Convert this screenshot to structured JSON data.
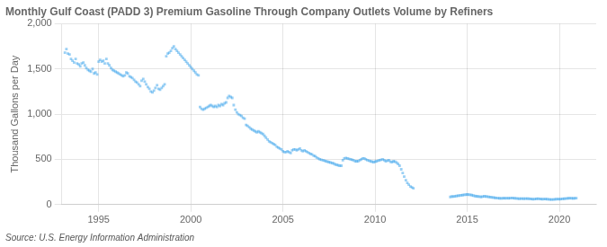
{
  "chart_data": {
    "type": "scatter",
    "title": "Monthly Gulf Coast (PADD 3) Premium Gasoline Through Company Outlets Volume by Refiners",
    "ylabel": "Thousand Gallons per Day",
    "annotation": "Source: U.S. Energy Information Administration",
    "marker": "square",
    "grid": true,
    "xlim": [
      1993,
      2022
    ],
    "xticks": [
      1995,
      2000,
      2005,
      2010,
      2015,
      2020
    ],
    "ylim": [
      0,
      2000
    ],
    "yticks": [
      0,
      500,
      {
        "value": 1000,
        "label": "1,000"
      },
      {
        "value": 1500,
        "label": "1,500"
      },
      {
        "value": 2000,
        "label": "2,000"
      }
    ],
    "x": [
      1993.17,
      1993.25,
      1993.33,
      1993.42,
      1993.5,
      1993.58,
      1993.67,
      1993.75,
      1993.83,
      1993.92,
      1994.0,
      1994.08,
      1994.17,
      1994.25,
      1994.33,
      1994.42,
      1994.5,
      1994.58,
      1994.67,
      1994.75,
      1994.83,
      1994.92,
      1995.0,
      1995.08,
      1995.17,
      1995.25,
      1995.33,
      1995.42,
      1995.5,
      1995.58,
      1995.67,
      1995.75,
      1995.83,
      1995.92,
      1996.0,
      1996.08,
      1996.17,
      1996.25,
      1996.33,
      1996.42,
      1996.5,
      1996.58,
      1996.67,
      1996.75,
      1996.83,
      1996.92,
      1997.0,
      1997.08,
      1997.17,
      1997.25,
      1997.33,
      1997.42,
      1997.5,
      1997.58,
      1997.67,
      1997.75,
      1997.83,
      1997.92,
      1998.0,
      1998.08,
      1998.17,
      1998.25,
      1998.33,
      1998.42,
      1998.5,
      1998.58,
      1998.67,
      1998.75,
      1998.83,
      1998.92,
      1999.0,
      1999.08,
      1999.17,
      1999.25,
      1999.33,
      1999.42,
      1999.5,
      1999.58,
      1999.67,
      1999.75,
      1999.83,
      1999.92,
      2000.0,
      2000.08,
      2000.17,
      2000.25,
      2000.33,
      2000.42,
      2000.5,
      2000.58,
      2000.67,
      2000.75,
      2000.83,
      2000.92,
      2001.0,
      2001.08,
      2001.17,
      2001.25,
      2001.33,
      2001.42,
      2001.5,
      2001.58,
      2001.67,
      2001.75,
      2001.83,
      2001.92,
      2002.0,
      2002.08,
      2002.17,
      2002.25,
      2002.33,
      2002.42,
      2002.5,
      2002.58,
      2002.67,
      2002.75,
      2002.83,
      2002.92,
      2003.0,
      2003.08,
      2003.17,
      2003.25,
      2003.33,
      2003.42,
      2003.5,
      2003.58,
      2003.67,
      2003.75,
      2003.83,
      2003.92,
      2004.0,
      2004.08,
      2004.17,
      2004.25,
      2004.33,
      2004.42,
      2004.5,
      2004.58,
      2004.67,
      2004.75,
      2004.83,
      2004.92,
      2005.0,
      2005.08,
      2005.17,
      2005.25,
      2005.33,
      2005.42,
      2005.5,
      2005.58,
      2005.67,
      2005.75,
      2005.83,
      2005.92,
      2006.0,
      2006.08,
      2006.17,
      2006.25,
      2006.33,
      2006.42,
      2006.5,
      2006.58,
      2006.67,
      2006.75,
      2006.83,
      2006.92,
      2007.0,
      2007.08,
      2007.17,
      2007.25,
      2007.33,
      2007.42,
      2007.5,
      2007.58,
      2007.67,
      2007.75,
      2007.83,
      2007.92,
      2008.0,
      2008.08,
      2008.17,
      2008.25,
      2008.33,
      2008.42,
      2008.5,
      2008.58,
      2008.67,
      2008.75,
      2008.83,
      2008.92,
      2009.0,
      2009.08,
      2009.17,
      2009.25,
      2009.33,
      2009.42,
      2009.5,
      2009.58,
      2009.67,
      2009.75,
      2009.83,
      2009.92,
      2010.0,
      2010.08,
      2010.17,
      2010.25,
      2010.33,
      2010.42,
      2010.5,
      2010.58,
      2010.67,
      2010.75,
      2010.83,
      2010.92,
      2011.0,
      2011.08,
      2011.17,
      2011.25,
      2011.33,
      2011.42,
      2011.5,
      2011.58,
      2011.67,
      2011.75,
      2011.83,
      2011.92,
      2012.0,
      2012.08,
      2014.08,
      2014.17,
      2014.25,
      2014.33,
      2014.42,
      2014.5,
      2014.58,
      2014.67,
      2014.75,
      2014.83,
      2014.92,
      2015.0,
      2015.08,
      2015.17,
      2015.25,
      2015.33,
      2015.42,
      2015.5,
      2015.58,
      2015.67,
      2015.75,
      2015.83,
      2015.92,
      2016.0,
      2016.08,
      2016.17,
      2016.25,
      2016.33,
      2016.42,
      2016.5,
      2016.58,
      2016.67,
      2016.75,
      2016.83,
      2016.92,
      2017.0,
      2017.08,
      2017.17,
      2017.25,
      2017.33,
      2017.42,
      2017.5,
      2017.58,
      2017.67,
      2017.75,
      2017.83,
      2017.92,
      2018.0,
      2018.08,
      2018.17,
      2018.25,
      2018.33,
      2018.42,
      2018.5,
      2018.58,
      2018.67,
      2018.75,
      2018.83,
      2018.92,
      2019.0,
      2019.08,
      2019.17,
      2019.25,
      2019.33,
      2019.42,
      2019.5,
      2019.58,
      2019.67,
      2019.75,
      2019.83,
      2019.92,
      2020.0,
      2020.08,
      2020.17,
      2020.25,
      2020.33,
      2020.42,
      2020.5,
      2020.58,
      2020.67,
      2020.75,
      2020.83,
      2020.92
    ],
    "values": [
      1680,
      1720,
      1670,
      1660,
      1610,
      1590,
      1570,
      1610,
      1560,
      1550,
      1530,
      1560,
      1570,
      1540,
      1510,
      1490,
      1480,
      1470,
      1500,
      1450,
      1460,
      1440,
      1580,
      1600,
      1580,
      1590,
      1560,
      1610,
      1560,
      1540,
      1510,
      1490,
      1480,
      1470,
      1460,
      1450,
      1440,
      1430,
      1420,
      1430,
      1460,
      1450,
      1420,
      1410,
      1400,
      1380,
      1360,
      1350,
      1330,
      1310,
      1370,
      1390,
      1360,
      1330,
      1300,
      1280,
      1250,
      1240,
      1260,
      1290,
      1320,
      1280,
      1270,
      1290,
      1310,
      1330,
      1640,
      1670,
      1680,
      1700,
      1730,
      1750,
      1720,
      1700,
      1680,
      1660,
      1640,
      1620,
      1600,
      1580,
      1560,
      1540,
      1520,
      1500,
      1480,
      1460,
      1440,
      1430,
      1080,
      1060,
      1050,
      1060,
      1070,
      1080,
      1090,
      1100,
      1090,
      1080,
      1090,
      1080,
      1100,
      1090,
      1110,
      1100,
      1120,
      1130,
      1180,
      1200,
      1190,
      1180,
      1100,
      1050,
      1020,
      1000,
      990,
      980,
      960,
      950,
      880,
      870,
      855,
      840,
      830,
      820,
      810,
      800,
      810,
      800,
      790,
      780,
      760,
      740,
      720,
      700,
      690,
      680,
      670,
      660,
      640,
      630,
      620,
      610,
      590,
      580,
      580,
      590,
      580,
      570,
      600,
      610,
      610,
      600,
      610,
      620,
      600,
      590,
      600,
      590,
      580,
      570,
      560,
      555,
      540,
      535,
      520,
      510,
      500,
      495,
      490,
      485,
      480,
      475,
      470,
      465,
      460,
      455,
      445,
      440,
      435,
      430,
      430,
      490,
      510,
      515,
      510,
      505,
      500,
      495,
      490,
      480,
      480,
      480,
      490,
      500,
      510,
      510,
      500,
      490,
      485,
      480,
      475,
      470,
      475,
      480,
      485,
      490,
      495,
      500,
      490,
      480,
      485,
      490,
      475,
      470,
      480,
      475,
      465,
      450,
      430,
      390,
      350,
      310,
      270,
      240,
      220,
      200,
      190,
      180,
      85,
      90,
      88,
      92,
      95,
      98,
      100,
      103,
      105,
      108,
      110,
      112,
      110,
      108,
      105,
      100,
      95,
      92,
      90,
      88,
      85,
      88,
      92,
      90,
      88,
      85,
      83,
      80,
      78,
      75,
      73,
      72,
      70,
      68,
      70,
      72,
      70,
      72,
      70,
      72,
      74,
      72,
      70,
      68,
      67,
      65,
      66,
      67,
      65,
      66,
      67,
      65,
      63,
      62,
      60,
      62,
      63,
      65,
      64,
      62,
      60,
      61,
      62,
      60,
      58,
      57,
      56,
      57,
      58,
      60,
      62,
      60,
      62,
      63,
      65,
      67,
      68,
      70,
      72,
      70,
      68,
      70,
      72
    ]
  }
}
